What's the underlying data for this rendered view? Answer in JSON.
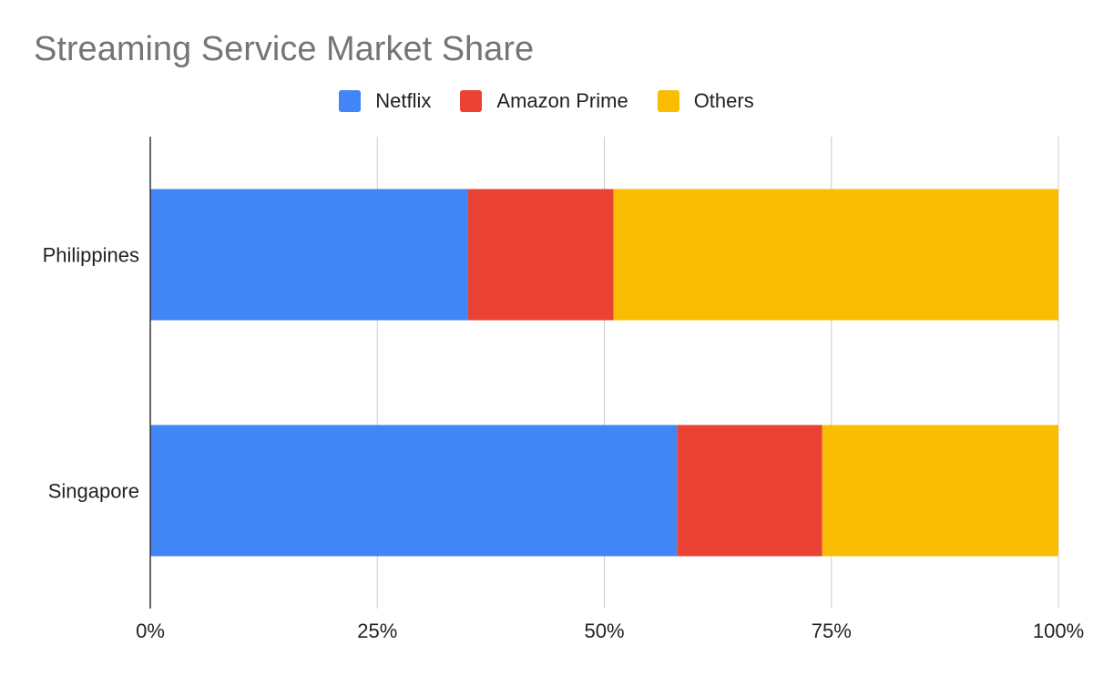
{
  "chart_data": {
    "type": "bar",
    "orientation": "horizontal",
    "stacking": "percent",
    "title": "Streaming Service Market Share",
    "xlabel": "",
    "ylabel": "",
    "categories": [
      "Philippines",
      "Singapore"
    ],
    "series": [
      {
        "name": "Netflix",
        "color": "#4285F4",
        "values": [
          35,
          58
        ]
      },
      {
        "name": "Amazon Prime",
        "color": "#EA4335",
        "values": [
          16,
          16
        ]
      },
      {
        "name": "Others",
        "color": "#FBBC04",
        "values": [
          49,
          26
        ]
      }
    ],
    "xlim": [
      0,
      100
    ],
    "xticks": [
      "0%",
      "25%",
      "50%",
      "75%",
      "100%"
    ],
    "grid": true,
    "legend_position": "top"
  }
}
